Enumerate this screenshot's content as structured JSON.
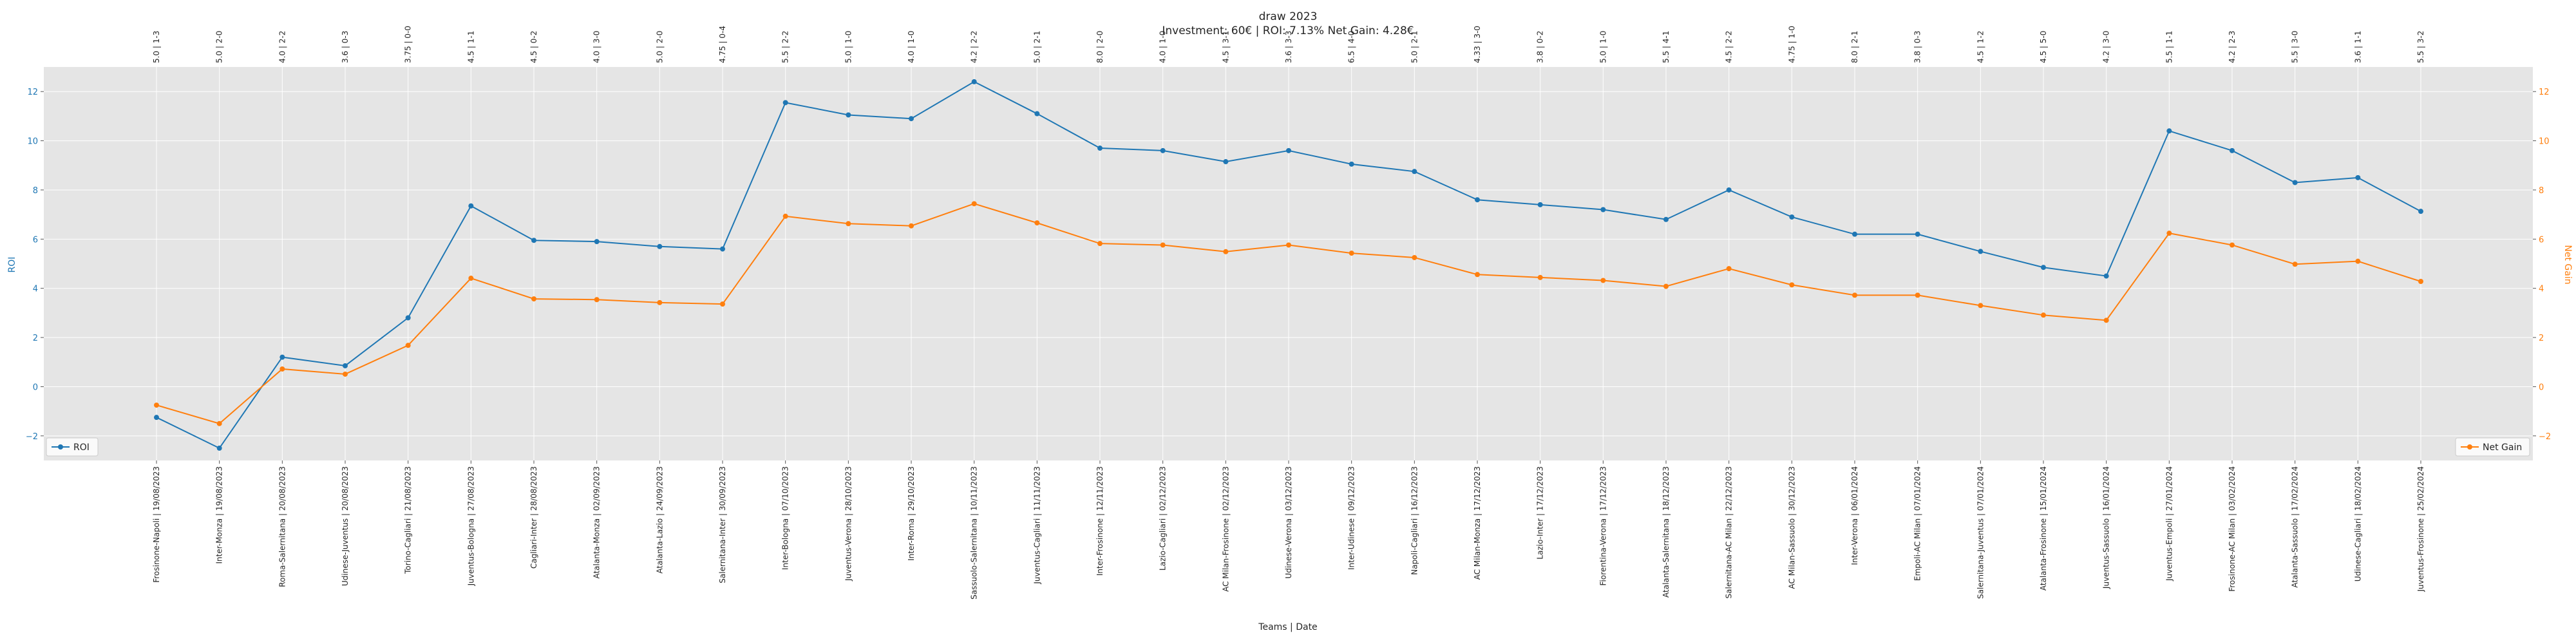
{
  "chart_data": {
    "type": "line",
    "title": "draw 2023",
    "subtitle": "Investment: 60€ | ROI: 7.13% Net Gain: 4.28€",
    "xlabel": "Teams | Date",
    "ylabel": "ROI",
    "y2label": "Net Gain",
    "ylim": [
      -3.0,
      13.0
    ],
    "y2lim": [
      -3.0,
      13.0
    ],
    "yticks": [
      -2,
      0,
      2,
      4,
      6,
      8,
      10,
      12
    ],
    "y2ticks": [
      -2,
      0,
      2,
      4,
      6,
      8,
      10,
      12
    ],
    "ytick_labels": [
      "−2",
      "0",
      "2",
      "4",
      "6",
      "8",
      "10",
      "12"
    ],
    "grid": true,
    "colors": {
      "roi": "#1f77b4",
      "net_gain": "#ff7f0e",
      "plot_bg": "#e5e5e5",
      "grid": "#ffffff"
    },
    "categories": [
      "Frosinone-Napoli | 19/08/2023",
      "Inter-Monza | 19/08/2023",
      "Roma-Salernitana | 20/08/2023",
      "Udinese-Juventus | 20/08/2023",
      "Torino-Cagliari | 21/08/2023",
      "Juventus-Bologna | 27/08/2023",
      "Cagliari-Inter | 28/08/2023",
      "Atalanta-Monza | 02/09/2023",
      "Atalanta-Lazio | 24/09/2023",
      "Salernitana-Inter | 30/09/2023",
      "Inter-Bologna | 07/10/2023",
      "Juventus-Verona | 28/10/2023",
      "Inter-Roma | 29/10/2023",
      "Sassuolo-Salernitana | 10/11/2023",
      "Juventus-Cagliari | 11/11/2023",
      "Inter-Frosinone | 12/11/2023",
      "Lazio-Cagliari | 02/12/2023",
      "AC Milan-Frosinone | 02/12/2023",
      "Udinese-Verona | 03/12/2023",
      "Inter-Udinese | 09/12/2023",
      "Napoli-Cagliari | 16/12/2023",
      "AC Milan-Monza | 17/12/2023",
      "Lazio-Inter | 17/12/2023",
      "Fiorentina-Verona | 17/12/2023",
      "Atalanta-Salernitana | 18/12/2023",
      "Salernitana-AC Milan | 22/12/2023",
      "AC Milan-Sassuolo | 30/12/2023",
      "Inter-Verona | 06/01/2024",
      "Empoli-AC Milan | 07/01/2024",
      "Salernitana-Juventus | 07/01/2024",
      "Atalanta-Frosinone | 15/01/2024",
      "Juventus-Sassuolo | 16/01/2024",
      "Juventus-Empoli | 27/01/2024",
      "Frosinone-AC Milan | 03/02/2024",
      "Atalanta-Sassuolo | 17/02/2024",
      "Udinese-Cagliari | 18/02/2024",
      "Juventus-Frosinone | 25/02/2024"
    ],
    "top_labels": [
      "5.0 | 1-3",
      "5.0 | 2-0",
      "4.0 | 2-2",
      "3.6 | 0-3",
      "3.75 | 0-0",
      "4.5 | 1-1",
      "4.5 | 0-2",
      "4.0 | 3-0",
      "5.0 | 2-0",
      "4.75 | 0-4",
      "5.5 | 2-2",
      "5.0 | 1-0",
      "4.0 | 1-0",
      "4.2 | 2-2",
      "5.0 | 2-1",
      "8.0 | 2-0",
      "4.0 | 1-0",
      "4.5 | 3-1",
      "3.6 | 3-3",
      "6.5 | 4-0",
      "5.0 | 2-1",
      "4.33 | 3-0",
      "3.8 | 0-2",
      "5.0 | 1-0",
      "5.5 | 4-1",
      "4.5 | 2-2",
      "4.75 | 1-0",
      "8.0 | 2-1",
      "3.8 | 0-3",
      "4.5 | 1-2",
      "4.5 | 5-0",
      "4.2 | 3-0",
      "5.5 | 1-1",
      "4.2 | 2-3",
      "5.5 | 3-0",
      "3.6 | 1-1",
      "5.5 | 3-2"
    ],
    "series": [
      {
        "name": "ROI",
        "axis": "left",
        "values": [
          -1.25,
          -2.5,
          1.2,
          0.85,
          2.8,
          7.35,
          5.95,
          5.9,
          5.7,
          5.6,
          11.55,
          11.05,
          10.9,
          12.4,
          11.1,
          9.7,
          9.6,
          9.15,
          9.6,
          9.05,
          8.75,
          7.6,
          7.4,
          7.2,
          6.8,
          8.0,
          6.9,
          6.2,
          6.2,
          5.5,
          4.85,
          4.5,
          10.4,
          9.6,
          8.3,
          8.5,
          7.13
        ]
      },
      {
        "name": "Net Gain",
        "axis": "right",
        "values": [
          -0.75,
          -1.5,
          0.72,
          0.51,
          1.68,
          4.41,
          3.57,
          3.54,
          3.42,
          3.36,
          6.93,
          6.63,
          6.54,
          7.44,
          6.66,
          5.82,
          5.76,
          5.49,
          5.76,
          5.43,
          5.25,
          4.56,
          4.44,
          4.32,
          4.08,
          4.8,
          4.14,
          3.72,
          3.72,
          3.3,
          2.91,
          2.7,
          6.24,
          5.76,
          4.98,
          5.1,
          4.28
        ]
      }
    ],
    "legend": [
      {
        "name": "ROI",
        "placement": "bottom-left"
      },
      {
        "name": "Net Gain",
        "placement": "bottom-right"
      }
    ]
  }
}
